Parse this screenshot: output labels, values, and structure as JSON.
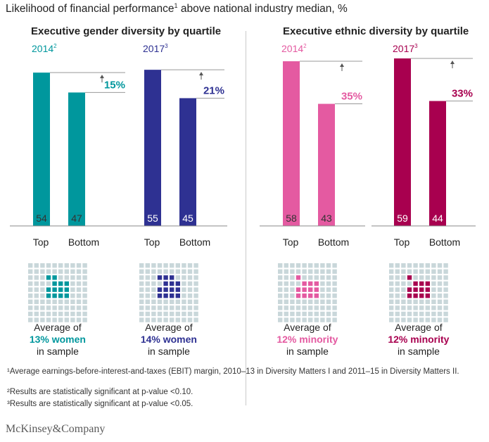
{
  "title": {
    "text": "Likelihood of financial performance",
    "sup": "1",
    "suffix": " above national industry median, %"
  },
  "groups": [
    {
      "title": "Executive gender diversity by quartile",
      "color": "#00979d"
    },
    {
      "title": "Executive ethnic diversity by quartile",
      "color": "#e45aa1"
    }
  ],
  "chart_data": [
    {
      "type": "bar",
      "period": "2014",
      "period_sup": "2",
      "categories": [
        "Top",
        "Bottom"
      ],
      "values": [
        54,
        47
      ],
      "difference_label": "15%",
      "color": "#00979d",
      "sample_share": 13,
      "sample_line1": "Average of",
      "sample_line2": "13% women",
      "sample_line3": "in sample"
    },
    {
      "type": "bar",
      "period": "2017",
      "period_sup": "3",
      "categories": [
        "Top",
        "Bottom"
      ],
      "values": [
        55,
        45
      ],
      "difference_label": "21%",
      "color": "#2e3192",
      "sample_share": 14,
      "sample_line1": "Average of",
      "sample_line2": "14% women",
      "sample_line3": "in sample"
    },
    {
      "type": "bar",
      "period": "2014",
      "period_sup": "2",
      "categories": [
        "Top",
        "Bottom"
      ],
      "values": [
        58,
        43
      ],
      "difference_label": "35%",
      "color": "#e45aa1",
      "sample_share": 12,
      "sample_line1": "Average of",
      "sample_line2": "12% minority",
      "sample_line3": "in sample"
    },
    {
      "type": "bar",
      "period": "2017",
      "period_sup": "3",
      "categories": [
        "Top",
        "Bottom"
      ],
      "values": [
        59,
        44
      ],
      "difference_label": "33%",
      "color": "#a8004f",
      "sample_share": 12,
      "sample_line1": "Average of",
      "sample_line2": "12% minority",
      "sample_line3": "in sample"
    }
  ],
  "footnotes": [
    "¹Average earnings-before-interest-and-taxes (EBIT) margin, 2010–13 in Diversity Matters I and 2011–15 in Diversity Matters II.",
    "²Results are statistically significant at p-value <0.10.",
    "³Results are statistically significant at p-value <0.05."
  ],
  "logo": "McKinsey&Company",
  "colors": {
    "grid_dot": "#c9d7da",
    "axis": "#888888",
    "bar_label_dark": "#333333",
    "bar_label_light": "#ffffff"
  }
}
